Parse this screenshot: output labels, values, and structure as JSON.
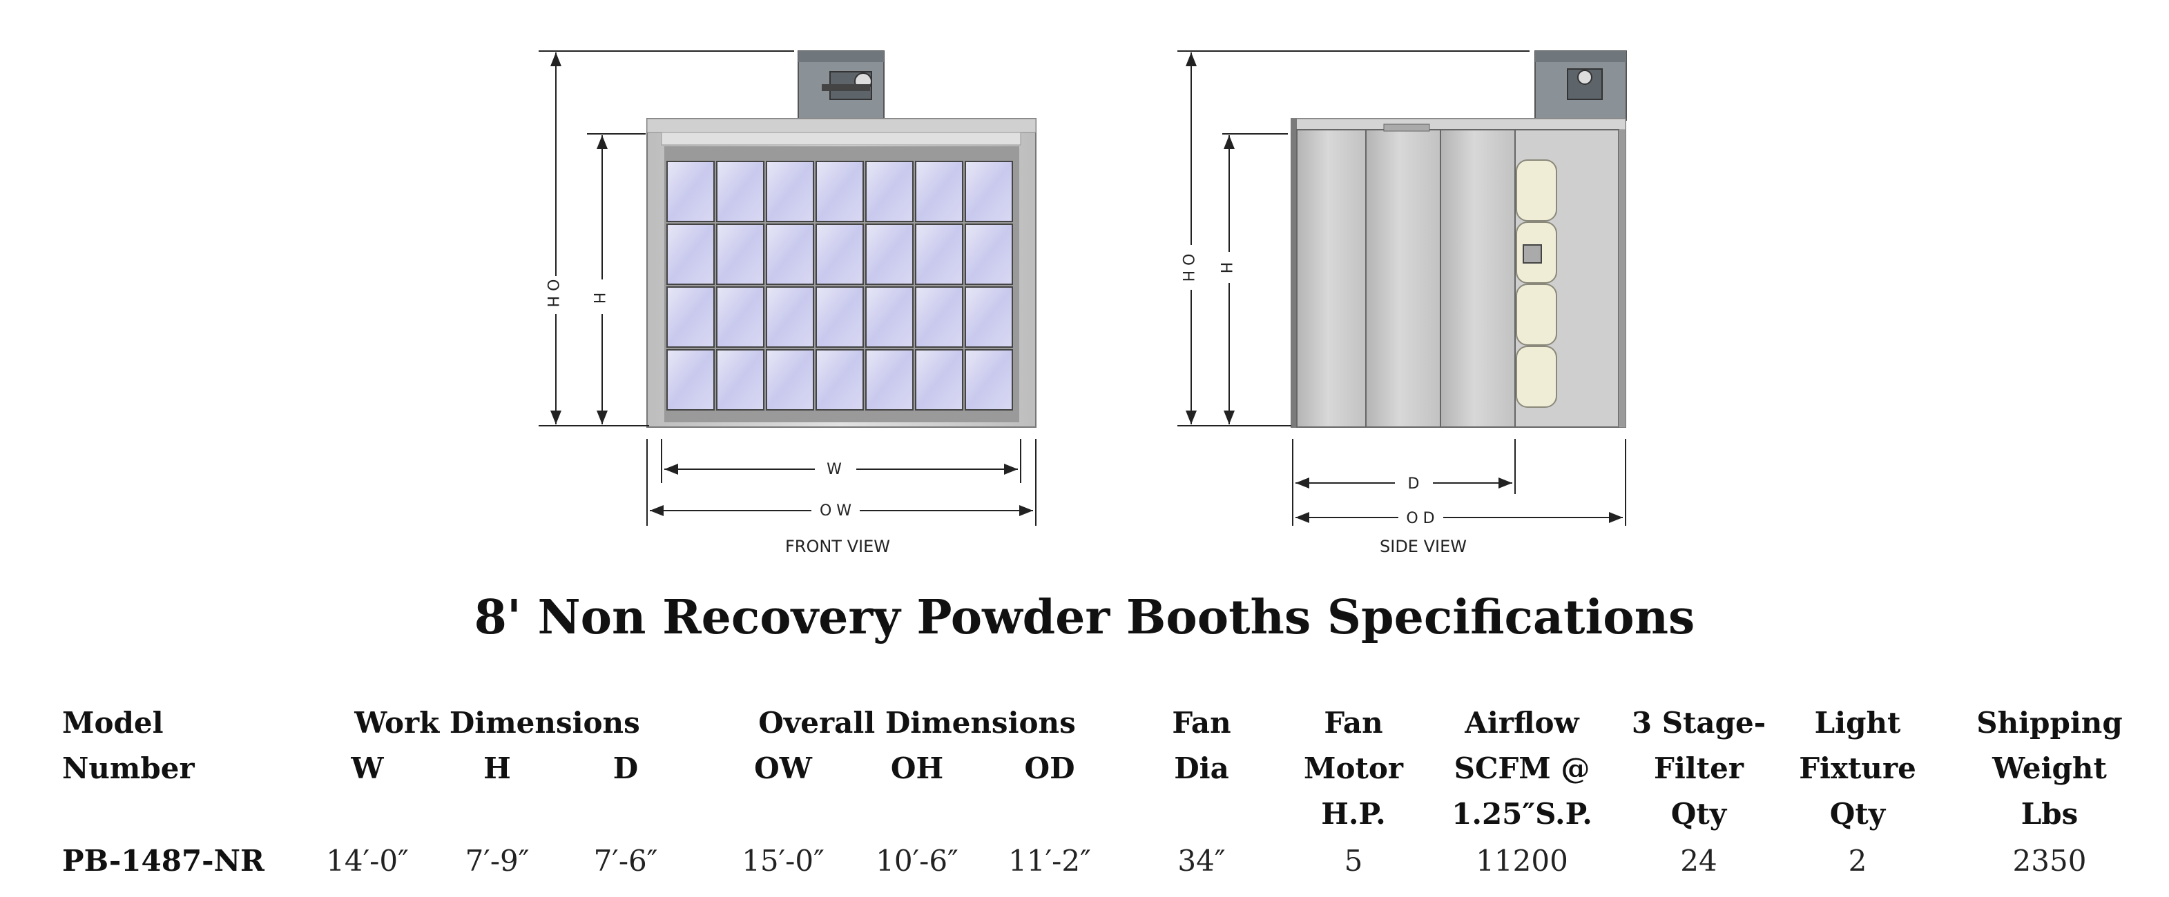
{
  "drawings": {
    "front_view_label": "FRONT VIEW",
    "side_view_label": "SIDE VIEW",
    "dims": {
      "oh": "O H",
      "h": "H",
      "w": "W",
      "ow": "O W",
      "d": "D",
      "od": "O D"
    }
  },
  "title": "8' Non Recovery Powder Booths Specifications",
  "table": {
    "headers": {
      "model": [
        "Model",
        "Number"
      ],
      "work_dimensions": "Work Dimensions",
      "work_w": "W",
      "work_h": "H",
      "work_d": "D",
      "overall_dimensions": "Overall Dimensions",
      "ow": "OW",
      "oh": "OH",
      "od": "OD",
      "fan_dia": [
        "Fan",
        "Dia"
      ],
      "fan_motor": [
        "Fan",
        "Motor",
        "H.P."
      ],
      "airflow": [
        "Airflow",
        "SCFM @",
        "1.25″S.P."
      ],
      "filter": [
        "3 Stage-",
        "Filter",
        "Qty"
      ],
      "light": [
        "Light",
        "Fixture",
        "Qty"
      ],
      "shipping": [
        "Shipping",
        "Weight",
        "Lbs"
      ]
    },
    "row": {
      "model": "PB-1487-NR",
      "w": "14′-0″",
      "h": "7′-9″",
      "d": "7′-6″",
      "ow": "15′-0″",
      "oh": "10′-6″",
      "od": "11′-2″",
      "fan_dia": "34″",
      "fan_motor": "5",
      "airflow": "11200",
      "filter": "24",
      "light": "2",
      "shipping": "2350"
    }
  }
}
